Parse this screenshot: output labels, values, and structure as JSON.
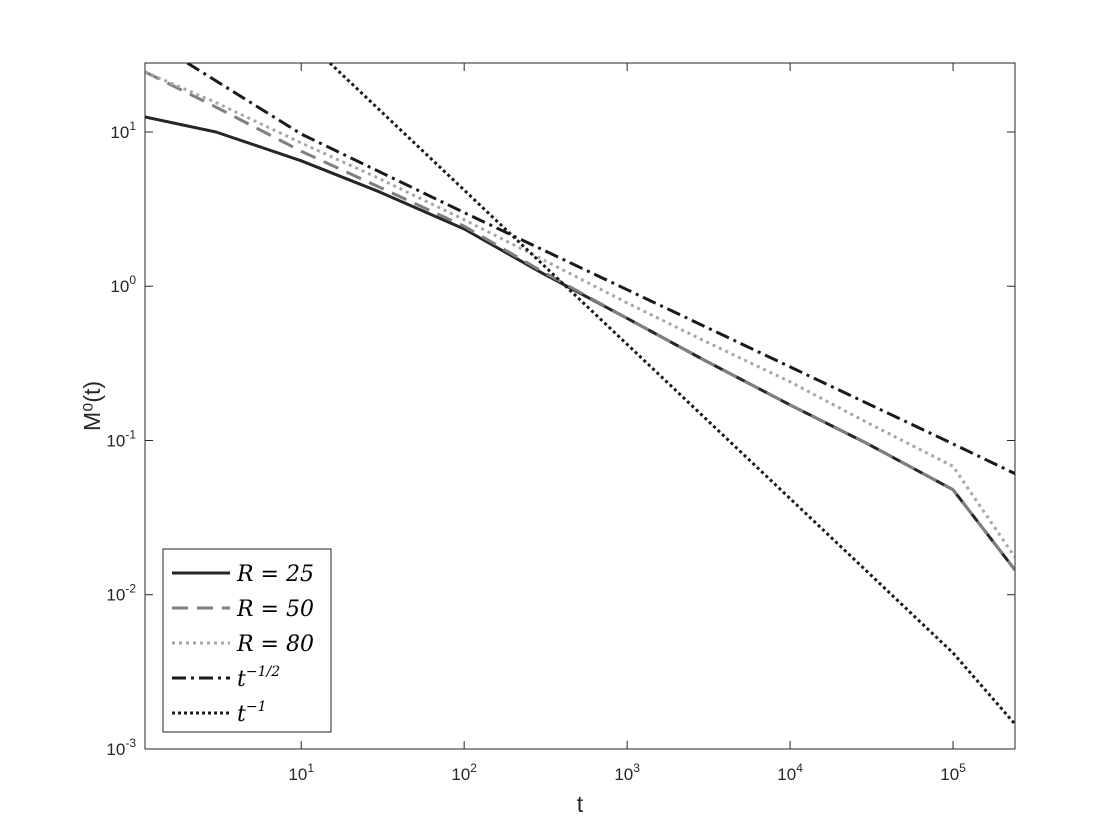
{
  "chart_data": {
    "type": "line",
    "title": "",
    "xlabel": "t",
    "ylabel": "M⁰(t)",
    "xscale": "log",
    "yscale": "log",
    "xlim": [
      1.1,
      240000
    ],
    "ylim": [
      0.001,
      28
    ],
    "x_ticks": [
      {
        "value": 10,
        "base": "10",
        "exp": "1"
      },
      {
        "value": 100,
        "base": "10",
        "exp": "2"
      },
      {
        "value": 1000,
        "base": "10",
        "exp": "3"
      },
      {
        "value": 10000,
        "base": "10",
        "exp": "4"
      },
      {
        "value": 100000,
        "base": "10",
        "exp": "5"
      }
    ],
    "y_ticks": [
      {
        "value": 10,
        "base": "10",
        "exp": "1"
      },
      {
        "value": 1,
        "base": "10",
        "exp": "0"
      },
      {
        "value": 0.1,
        "base": "10",
        "exp": "-1"
      },
      {
        "value": 0.01,
        "base": "10",
        "exp": "-2"
      },
      {
        "value": 0.001,
        "base": "10",
        "exp": "-3"
      }
    ],
    "grid": false,
    "legend_position": "bottom-left",
    "series": [
      {
        "name": "R = 25",
        "legend_main": "R = 25",
        "legend_sup": "",
        "color": "#262626",
        "style": "solid",
        "x": [
          1.1,
          3,
          10,
          30,
          100,
          300,
          1000,
          3000,
          10000,
          30000,
          100000,
          240000
        ],
        "y": [
          12.5,
          10.0,
          6.5,
          4.1,
          2.35,
          1.22,
          0.62,
          0.33,
          0.17,
          0.095,
          0.048,
          0.0145
        ]
      },
      {
        "name": "R = 50",
        "legend_main": "R = 50",
        "legend_sup": "",
        "color": "#7f7f7f",
        "style": "dashed",
        "x": [
          1.1,
          3,
          10,
          30,
          100,
          300,
          1000,
          3000,
          10000,
          30000,
          100000,
          240000
        ],
        "y": [
          24.5,
          14.5,
          7.5,
          4.4,
          2.45,
          1.25,
          0.62,
          0.33,
          0.17,
          0.095,
          0.048,
          0.0145
        ]
      },
      {
        "name": "R = 80",
        "legend_main": "R = 80",
        "legend_sup": "",
        "color": "#a6a6a6",
        "style": "dotted",
        "x": [
          1.1,
          3,
          10,
          30,
          100,
          300,
          1000,
          3000,
          10000,
          30000,
          100000,
          240000
        ],
        "y": [
          24.5,
          15.5,
          8.5,
          5.0,
          2.7,
          1.5,
          0.78,
          0.44,
          0.24,
          0.13,
          0.068,
          0.0175
        ]
      },
      {
        "name": "t^{-1/2}",
        "legend_main": "t",
        "legend_sup": "−1/2",
        "color": "#1a1a1a",
        "style": "dashdot",
        "x": [
          2,
          10,
          100,
          1000,
          10000,
          100000,
          240000
        ],
        "y": [
          28,
          9.7,
          3.0,
          0.95,
          0.3,
          0.095,
          0.061
        ]
      },
      {
        "name": "t^{-1}",
        "legend_main": "t",
        "legend_sup": "−1",
        "color": "#1a1a1a",
        "style": "densedot",
        "x": [
          15,
          100,
          1000,
          10000,
          100000,
          240000
        ],
        "y": [
          28,
          4.2,
          0.42,
          0.042,
          0.0042,
          0.00145
        ]
      }
    ]
  }
}
